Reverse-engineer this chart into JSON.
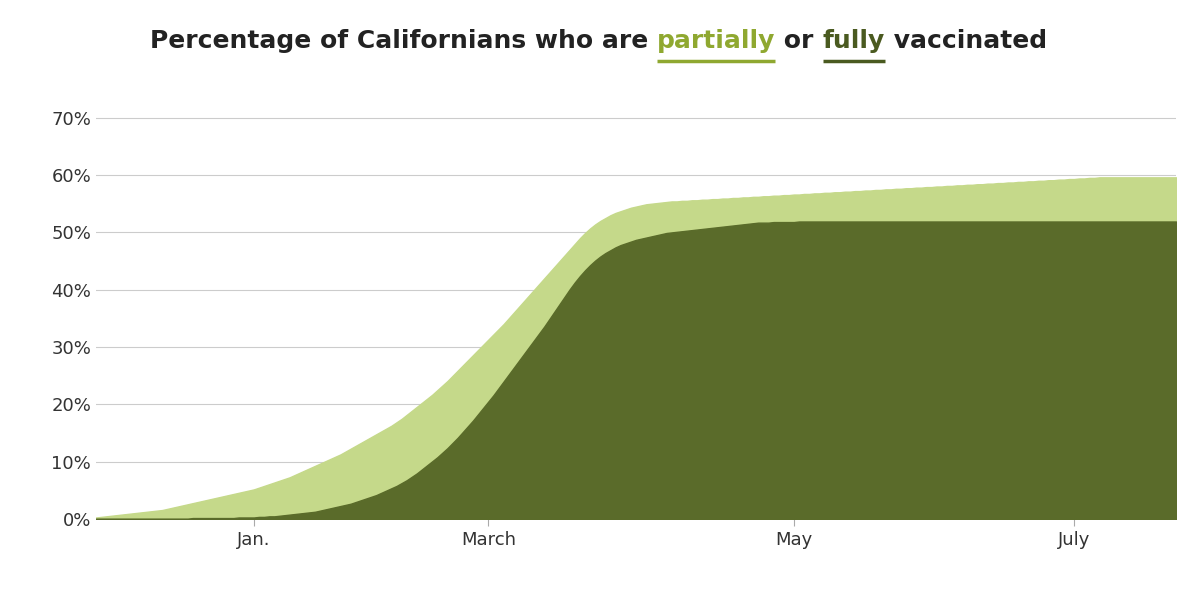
{
  "color_partial": "#c5d98a",
  "color_full": "#5a6b2a",
  "color_gridline": "#cccccc",
  "color_text": "#333333",
  "color_tick": "#aaaaaa",
  "background": "#ffffff",
  "ylim": [
    0,
    0.72
  ],
  "yticks": [
    0.0,
    0.1,
    0.2,
    0.3,
    0.4,
    0.5,
    0.6,
    0.7
  ],
  "ytick_labels": [
    "0%",
    "10%",
    "20%",
    "30%",
    "40%",
    "50%",
    "60%",
    "70%"
  ],
  "x_tick_labels": [
    "Jan.",
    "March",
    "May",
    "July"
  ],
  "title_parts": [
    {
      "text": "Percentage of Californians who are ",
      "underline": false,
      "color": "#222222"
    },
    {
      "text": "partially",
      "underline": true,
      "color": "#8fa830"
    },
    {
      "text": " or ",
      "underline": false,
      "color": "#222222"
    },
    {
      "text": "fully",
      "underline": true,
      "color": "#4a5a20"
    },
    {
      "text": " vaccinated",
      "underline": false,
      "color": "#222222"
    }
  ],
  "partially_vaccinated": [
    0.003,
    0.004,
    0.005,
    0.006,
    0.007,
    0.008,
    0.009,
    0.01,
    0.011,
    0.012,
    0.013,
    0.014,
    0.015,
    0.016,
    0.018,
    0.02,
    0.022,
    0.024,
    0.026,
    0.028,
    0.03,
    0.032,
    0.034,
    0.036,
    0.038,
    0.04,
    0.042,
    0.044,
    0.046,
    0.048,
    0.05,
    0.052,
    0.055,
    0.058,
    0.061,
    0.064,
    0.067,
    0.07,
    0.073,
    0.077,
    0.081,
    0.085,
    0.089,
    0.093,
    0.097,
    0.101,
    0.105,
    0.109,
    0.113,
    0.118,
    0.123,
    0.128,
    0.133,
    0.138,
    0.143,
    0.148,
    0.153,
    0.158,
    0.163,
    0.169,
    0.175,
    0.182,
    0.189,
    0.196,
    0.203,
    0.21,
    0.217,
    0.225,
    0.233,
    0.241,
    0.25,
    0.259,
    0.268,
    0.277,
    0.286,
    0.295,
    0.304,
    0.313,
    0.322,
    0.331,
    0.34,
    0.35,
    0.36,
    0.37,
    0.38,
    0.39,
    0.4,
    0.41,
    0.42,
    0.43,
    0.44,
    0.45,
    0.46,
    0.47,
    0.48,
    0.49,
    0.499,
    0.507,
    0.514,
    0.52,
    0.525,
    0.53,
    0.534,
    0.537,
    0.54,
    0.543,
    0.545,
    0.547,
    0.549,
    0.55,
    0.551,
    0.552,
    0.553,
    0.554,
    0.554,
    0.555,
    0.555,
    0.556,
    0.556,
    0.557,
    0.557,
    0.558,
    0.558,
    0.559,
    0.559,
    0.56,
    0.56,
    0.561,
    0.561,
    0.562,
    0.562,
    0.563,
    0.563,
    0.564,
    0.564,
    0.565,
    0.565,
    0.566,
    0.566,
    0.567,
    0.567,
    0.568,
    0.568,
    0.569,
    0.569,
    0.57,
    0.57,
    0.571,
    0.571,
    0.572,
    0.572,
    0.573,
    0.573,
    0.574,
    0.574,
    0.575,
    0.575,
    0.576,
    0.576,
    0.577,
    0.577,
    0.578,
    0.578,
    0.579,
    0.579,
    0.58,
    0.58,
    0.581,
    0.581,
    0.582,
    0.582,
    0.583,
    0.583,
    0.584,
    0.584,
    0.585,
    0.585,
    0.586,
    0.586,
    0.587,
    0.587,
    0.588,
    0.588,
    0.589,
    0.589,
    0.59,
    0.59,
    0.591,
    0.591,
    0.592,
    0.592,
    0.593,
    0.593,
    0.594,
    0.594,
    0.595,
    0.595,
    0.596,
    0.596,
    0.596,
    0.596,
    0.596,
    0.596,
    0.596,
    0.596,
    0.596,
    0.596,
    0.596,
    0.596,
    0.596,
    0.596,
    0.596,
    0.596
  ],
  "fully_vaccinated": [
    0.001,
    0.001,
    0.001,
    0.001,
    0.001,
    0.001,
    0.001,
    0.001,
    0.001,
    0.001,
    0.001,
    0.001,
    0.001,
    0.001,
    0.001,
    0.001,
    0.001,
    0.001,
    0.001,
    0.002,
    0.002,
    0.002,
    0.002,
    0.002,
    0.002,
    0.002,
    0.002,
    0.002,
    0.003,
    0.003,
    0.003,
    0.003,
    0.004,
    0.004,
    0.005,
    0.005,
    0.006,
    0.007,
    0.008,
    0.009,
    0.01,
    0.011,
    0.012,
    0.013,
    0.015,
    0.017,
    0.019,
    0.021,
    0.023,
    0.025,
    0.027,
    0.03,
    0.033,
    0.036,
    0.039,
    0.042,
    0.046,
    0.05,
    0.054,
    0.058,
    0.063,
    0.068,
    0.074,
    0.08,
    0.087,
    0.094,
    0.101,
    0.108,
    0.116,
    0.124,
    0.133,
    0.142,
    0.152,
    0.162,
    0.172,
    0.183,
    0.194,
    0.205,
    0.216,
    0.228,
    0.24,
    0.252,
    0.264,
    0.276,
    0.288,
    0.3,
    0.312,
    0.324,
    0.336,
    0.349,
    0.362,
    0.375,
    0.388,
    0.401,
    0.413,
    0.424,
    0.434,
    0.443,
    0.451,
    0.458,
    0.464,
    0.469,
    0.474,
    0.478,
    0.481,
    0.484,
    0.487,
    0.489,
    0.491,
    0.493,
    0.495,
    0.497,
    0.499,
    0.5,
    0.501,
    0.502,
    0.503,
    0.504,
    0.505,
    0.506,
    0.507,
    0.508,
    0.509,
    0.51,
    0.511,
    0.512,
    0.513,
    0.514,
    0.515,
    0.516,
    0.517,
    0.517,
    0.517,
    0.518,
    0.518,
    0.518,
    0.518,
    0.518,
    0.519,
    0.519,
    0.519,
    0.519,
    0.519,
    0.519,
    0.519,
    0.519,
    0.519,
    0.519,
    0.519,
    0.519,
    0.519,
    0.519,
    0.519,
    0.519,
    0.519,
    0.519,
    0.519,
    0.519,
    0.519,
    0.519,
    0.519,
    0.519,
    0.519,
    0.519,
    0.519,
    0.519,
    0.519,
    0.519,
    0.519,
    0.519,
    0.519,
    0.519,
    0.519,
    0.519,
    0.519,
    0.519,
    0.519,
    0.519,
    0.519,
    0.519,
    0.519,
    0.519,
    0.519,
    0.519,
    0.519,
    0.519,
    0.519,
    0.519,
    0.519,
    0.519,
    0.519,
    0.519,
    0.519,
    0.519,
    0.519,
    0.519,
    0.519,
    0.519,
    0.519,
    0.519,
    0.519,
    0.519,
    0.519,
    0.519,
    0.519,
    0.519,
    0.519,
    0.519,
    0.519,
    0.519,
    0.519,
    0.519,
    0.519
  ]
}
